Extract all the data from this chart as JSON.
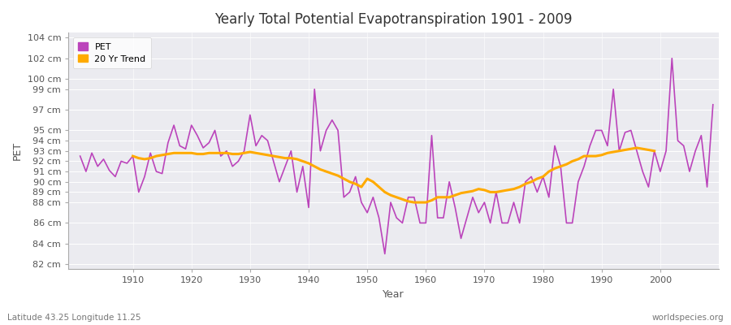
{
  "title": "Yearly Total Potential Evapotranspiration 1901 - 2009",
  "xlabel": "Year",
  "ylabel": "PET",
  "bottom_left_label": "Latitude 43.25 Longitude 11.25",
  "bottom_right_label": "worldspecies.org",
  "pet_color": "#bb44bb",
  "trend_color": "#ffaa00",
  "fig_background_color": "#ffffff",
  "plot_background_color": "#ebebf0",
  "grid_color": "#ffffff",
  "ylim": [
    81.5,
    104.5
  ],
  "xlim": [
    1899,
    2010
  ],
  "years": [
    1901,
    1902,
    1903,
    1904,
    1905,
    1906,
    1907,
    1908,
    1909,
    1910,
    1911,
    1912,
    1913,
    1914,
    1915,
    1916,
    1917,
    1918,
    1919,
    1920,
    1921,
    1922,
    1923,
    1924,
    1925,
    1926,
    1927,
    1928,
    1929,
    1930,
    1931,
    1932,
    1933,
    1934,
    1935,
    1936,
    1937,
    1938,
    1939,
    1940,
    1941,
    1942,
    1943,
    1944,
    1945,
    1946,
    1947,
    1948,
    1949,
    1950,
    1951,
    1952,
    1953,
    1954,
    1955,
    1956,
    1957,
    1958,
    1959,
    1960,
    1961,
    1962,
    1963,
    1964,
    1965,
    1966,
    1967,
    1968,
    1969,
    1970,
    1971,
    1972,
    1973,
    1974,
    1975,
    1976,
    1977,
    1978,
    1979,
    1980,
    1981,
    1982,
    1983,
    1984,
    1985,
    1986,
    1987,
    1988,
    1989,
    1990,
    1991,
    1992,
    1993,
    1994,
    1995,
    1996,
    1997,
    1998,
    1999,
    2000,
    2001,
    2002,
    2003,
    2004,
    2005,
    2006,
    2007,
    2008,
    2009
  ],
  "pet_values": [
    92.5,
    91.0,
    92.8,
    91.5,
    92.2,
    91.1,
    90.5,
    92.0,
    91.8,
    92.5,
    89.0,
    90.5,
    92.8,
    91.0,
    90.8,
    93.8,
    95.5,
    93.5,
    93.2,
    95.5,
    94.5,
    93.3,
    93.8,
    95.0,
    92.5,
    93.0,
    91.5,
    92.0,
    93.0,
    96.5,
    93.5,
    94.5,
    94.0,
    92.0,
    90.0,
    91.5,
    93.0,
    89.0,
    91.5,
    87.5,
    99.0,
    93.0,
    95.0,
    96.0,
    95.0,
    88.5,
    89.0,
    90.5,
    88.0,
    87.0,
    88.5,
    86.5,
    83.0,
    88.0,
    86.5,
    86.0,
    88.5,
    88.5,
    86.0,
    86.0,
    94.5,
    86.5,
    86.5,
    90.0,
    87.5,
    84.5,
    86.5,
    88.5,
    87.0,
    88.0,
    86.0,
    89.0,
    86.0,
    86.0,
    88.0,
    86.0,
    90.0,
    90.5,
    89.0,
    90.5,
    88.5,
    93.5,
    91.5,
    86.0,
    86.0,
    90.0,
    91.5,
    93.5,
    95.0,
    95.0,
    93.5,
    99.0,
    93.0,
    94.8,
    95.0,
    93.0,
    91.0,
    89.5,
    93.0,
    91.0,
    93.0,
    102.0,
    94.0,
    93.5,
    91.0,
    93.0,
    94.5,
    89.5,
    97.5
  ],
  "trend_values": [
    null,
    null,
    null,
    null,
    null,
    null,
    null,
    null,
    null,
    92.5,
    92.3,
    92.2,
    92.3,
    92.5,
    92.6,
    92.7,
    92.8,
    92.8,
    92.8,
    92.8,
    92.7,
    92.7,
    92.8,
    92.8,
    92.8,
    92.8,
    92.7,
    92.7,
    92.8,
    92.9,
    92.8,
    92.7,
    92.6,
    92.5,
    92.4,
    92.3,
    92.3,
    92.2,
    92.0,
    91.8,
    91.5,
    91.2,
    91.0,
    90.8,
    90.6,
    90.3,
    90.0,
    89.8,
    89.5,
    90.3,
    90.0,
    89.5,
    89.0,
    88.7,
    88.5,
    88.3,
    88.1,
    88.0,
    88.0,
    88.0,
    88.2,
    88.5,
    88.5,
    88.5,
    88.7,
    88.9,
    89.0,
    89.1,
    89.3,
    89.2,
    89.0,
    89.0,
    89.1,
    89.2,
    89.3,
    89.5,
    89.8,
    90.0,
    90.3,
    90.5,
    91.0,
    91.3,
    91.5,
    91.7,
    92.0,
    92.2,
    92.5,
    92.5,
    92.5,
    92.6,
    92.8,
    92.9,
    93.0,
    93.1,
    93.2,
    93.3,
    93.2,
    93.1,
    93.0,
    null,
    null,
    null,
    null,
    null,
    null,
    null,
    null,
    null
  ],
  "ytick_vals": [
    82,
    84,
    86,
    88,
    89,
    90,
    91,
    92,
    93,
    94,
    95,
    97,
    99,
    100,
    102,
    104
  ],
  "xtick_vals": [
    1910,
    1920,
    1930,
    1940,
    1950,
    1960,
    1970,
    1980,
    1990,
    2000
  ]
}
